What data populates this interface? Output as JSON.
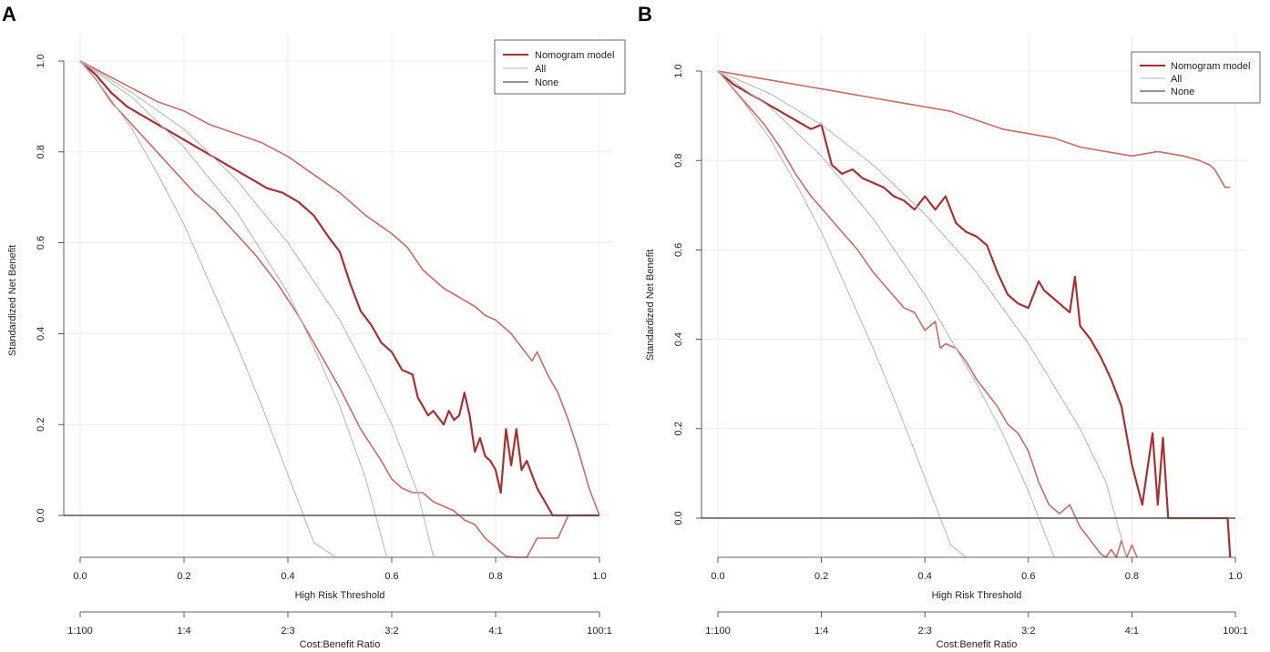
{
  "colors": {
    "model": "#a83232",
    "ci": "#cc6b63",
    "all": "#b5b5b5",
    "none": "#555555",
    "grid": "#ececec"
  },
  "chart_data": [
    {
      "panel_label": "A",
      "type": "line",
      "xlabel": "High Risk Threshold",
      "ylabel": "Standardized Net Benefit",
      "xlim": [
        0,
        1
      ],
      "ylim": [
        -0.09,
        1.02
      ],
      "xticks": [
        "0.0",
        "0.2",
        "0.4",
        "0.6",
        "0.8",
        "1.0"
      ],
      "yticks": [
        "0.0",
        "0.2",
        "0.4",
        "0.6",
        "0.8",
        "1.0"
      ],
      "cost_benefit_label": "Cost:Benefit Ratio",
      "cost_benefit_ticks": [
        "1:100",
        "1:4",
        "2:3",
        "3:2",
        "4:1",
        "100:1"
      ],
      "legend": [
        "Nomogram model",
        "All",
        "None"
      ],
      "series": [
        {
          "name": "Nomogram model",
          "role": "model",
          "x": [
            0,
            0.03,
            0.06,
            0.09,
            0.12,
            0.15,
            0.18,
            0.21,
            0.24,
            0.27,
            0.3,
            0.33,
            0.36,
            0.39,
            0.42,
            0.45,
            0.48,
            0.5,
            0.52,
            0.54,
            0.56,
            0.58,
            0.6,
            0.62,
            0.64,
            0.65,
            0.66,
            0.67,
            0.68,
            0.7,
            0.71,
            0.72,
            0.73,
            0.74,
            0.75,
            0.76,
            0.77,
            0.78,
            0.79,
            0.8,
            0.81,
            0.82,
            0.83,
            0.84,
            0.85,
            0.86,
            0.87,
            0.88,
            0.89,
            0.9,
            0.91,
            0.92,
            0.93,
            0.94,
            0.95,
            0.96,
            0.98,
            1.0
          ],
          "y": [
            1.0,
            0.97,
            0.93,
            0.9,
            0.88,
            0.86,
            0.84,
            0.82,
            0.8,
            0.78,
            0.76,
            0.74,
            0.72,
            0.71,
            0.69,
            0.66,
            0.61,
            0.58,
            0.51,
            0.45,
            0.42,
            0.38,
            0.36,
            0.32,
            0.31,
            0.26,
            0.24,
            0.22,
            0.23,
            0.2,
            0.23,
            0.21,
            0.22,
            0.27,
            0.22,
            0.14,
            0.17,
            0.13,
            0.12,
            0.1,
            0.05,
            0.19,
            0.11,
            0.19,
            0.1,
            0.12,
            0.09,
            0.06,
            0.04,
            0.02,
            0.0,
            0.0,
            0.0,
            0.0,
            0.0,
            0.0,
            0.0,
            0.0
          ]
        },
        {
          "name": "Upper CI",
          "role": "ci",
          "x": [
            0,
            0.05,
            0.1,
            0.15,
            0.2,
            0.25,
            0.3,
            0.35,
            0.4,
            0.45,
            0.5,
            0.55,
            0.6,
            0.63,
            0.66,
            0.7,
            0.73,
            0.76,
            0.78,
            0.8,
            0.83,
            0.85,
            0.87,
            0.88,
            0.9,
            0.92,
            0.94,
            0.96,
            0.98,
            1.0
          ],
          "y": [
            1.0,
            0.97,
            0.94,
            0.91,
            0.89,
            0.86,
            0.84,
            0.82,
            0.79,
            0.75,
            0.71,
            0.66,
            0.62,
            0.59,
            0.54,
            0.5,
            0.48,
            0.46,
            0.44,
            0.43,
            0.4,
            0.37,
            0.34,
            0.36,
            0.31,
            0.27,
            0.21,
            0.14,
            0.06,
            0.0
          ]
        },
        {
          "name": "Lower CI",
          "role": "ci",
          "x": [
            0,
            0.03,
            0.06,
            0.1,
            0.14,
            0.18,
            0.22,
            0.26,
            0.3,
            0.34,
            0.38,
            0.42,
            0.46,
            0.5,
            0.54,
            0.58,
            0.6,
            0.62,
            0.64,
            0.66,
            0.68,
            0.7,
            0.72,
            0.74,
            0.76,
            0.78,
            0.8,
            0.82,
            0.84,
            0.86,
            0.88,
            0.9,
            0.92,
            0.94
          ],
          "y": [
            1.0,
            0.96,
            0.91,
            0.86,
            0.81,
            0.76,
            0.71,
            0.67,
            0.62,
            0.57,
            0.51,
            0.44,
            0.36,
            0.28,
            0.19,
            0.12,
            0.08,
            0.06,
            0.05,
            0.05,
            0.03,
            0.02,
            0.01,
            -0.01,
            -0.02,
            -0.05,
            -0.07,
            -0.09,
            -0.1,
            -0.1,
            -0.05,
            -0.05,
            -0.05,
            0.0
          ]
        },
        {
          "name": "All",
          "role": "all",
          "curves": [
            {
              "x": [
                0,
                0.05,
                0.1,
                0.15,
                0.2,
                0.25,
                0.3,
                0.35,
                0.4,
                0.45,
                0.49
              ],
              "y": [
                1.0,
                0.93,
                0.85,
                0.75,
                0.64,
                0.51,
                0.38,
                0.24,
                0.09,
                -0.06,
                -0.09
              ]
            },
            {
              "x": [
                0,
                0.1,
                0.2,
                0.3,
                0.4,
                0.45,
                0.5,
                0.55,
                0.59
              ],
              "y": [
                1.0,
                0.92,
                0.81,
                0.67,
                0.49,
                0.37,
                0.24,
                0.08,
                -0.09
              ]
            },
            {
              "x": [
                0,
                0.1,
                0.2,
                0.3,
                0.4,
                0.5,
                0.55,
                0.6,
                0.65,
                0.68
              ],
              "y": [
                1.0,
                0.93,
                0.85,
                0.74,
                0.6,
                0.43,
                0.32,
                0.2,
                0.05,
                -0.09
              ]
            }
          ]
        },
        {
          "name": "None",
          "role": "none",
          "y": 0.0
        }
      ]
    },
    {
      "panel_label": "B",
      "type": "line",
      "xlabel": "High Risk Threshold",
      "ylabel": "Standardized Net Benefit",
      "xlim": [
        0,
        1
      ],
      "ylim": [
        -0.09,
        1.0
      ],
      "xticks": [
        "0.0",
        "0.2",
        "0.4",
        "0.6",
        "0.8",
        "1.0"
      ],
      "yticks": [
        "0.0",
        "0.2",
        "0.4",
        "0.6",
        "0.8",
        "1.0"
      ],
      "cost_benefit_label": "Cost:Benefit Ratio",
      "cost_benefit_ticks": [
        "1:100",
        "1:4",
        "2:3",
        "3:2",
        "4:1",
        "100:1"
      ],
      "legend": [
        "Nomogram model",
        "All",
        "None"
      ],
      "series": [
        {
          "name": "Nomogram model",
          "role": "model",
          "x": [
            0,
            0.03,
            0.06,
            0.09,
            0.12,
            0.15,
            0.18,
            0.2,
            0.22,
            0.24,
            0.26,
            0.28,
            0.3,
            0.32,
            0.34,
            0.36,
            0.38,
            0.4,
            0.42,
            0.44,
            0.46,
            0.48,
            0.5,
            0.52,
            0.54,
            0.56,
            0.58,
            0.6,
            0.62,
            0.63,
            0.64,
            0.66,
            0.68,
            0.69,
            0.7,
            0.72,
            0.74,
            0.76,
            0.78,
            0.8,
            0.82,
            0.84,
            0.85,
            0.86,
            0.87,
            0.88,
            0.89,
            0.9,
            0.91,
            0.92,
            0.95,
            0.98,
            0.985,
            0.99
          ],
          "y": [
            1.0,
            0.97,
            0.95,
            0.93,
            0.91,
            0.89,
            0.87,
            0.88,
            0.79,
            0.77,
            0.78,
            0.76,
            0.75,
            0.74,
            0.72,
            0.71,
            0.69,
            0.72,
            0.69,
            0.72,
            0.66,
            0.64,
            0.63,
            0.61,
            0.55,
            0.5,
            0.48,
            0.47,
            0.53,
            0.51,
            0.5,
            0.48,
            0.46,
            0.54,
            0.43,
            0.4,
            0.36,
            0.31,
            0.25,
            0.12,
            0.03,
            0.19,
            0.03,
            0.18,
            0.0,
            0.0,
            0.0,
            0.0,
            0.0,
            0.0,
            0.0,
            0.0,
            0.0,
            -0.09
          ]
        },
        {
          "name": "Upper CI",
          "role": "ci",
          "x": [
            0,
            0.05,
            0.1,
            0.15,
            0.2,
            0.25,
            0.3,
            0.35,
            0.4,
            0.45,
            0.5,
            0.55,
            0.6,
            0.65,
            0.7,
            0.75,
            0.8,
            0.85,
            0.9,
            0.93,
            0.95,
            0.96,
            0.97,
            0.98,
            0.99
          ],
          "y": [
            1.0,
            0.99,
            0.98,
            0.97,
            0.96,
            0.95,
            0.94,
            0.93,
            0.92,
            0.91,
            0.89,
            0.87,
            0.86,
            0.85,
            0.83,
            0.82,
            0.81,
            0.82,
            0.81,
            0.8,
            0.79,
            0.78,
            0.76,
            0.74,
            0.74
          ]
        },
        {
          "name": "Lower CI",
          "role": "ci",
          "x": [
            0,
            0.03,
            0.06,
            0.09,
            0.12,
            0.15,
            0.18,
            0.21,
            0.24,
            0.27,
            0.3,
            0.33,
            0.36,
            0.38,
            0.4,
            0.42,
            0.43,
            0.44,
            0.46,
            0.48,
            0.5,
            0.52,
            0.54,
            0.56,
            0.58,
            0.6,
            0.62,
            0.64,
            0.66,
            0.68,
            0.7,
            0.72,
            0.74,
            0.75,
            0.76,
            0.77,
            0.78,
            0.79,
            0.8,
            0.81
          ],
          "y": [
            1.0,
            0.96,
            0.92,
            0.88,
            0.83,
            0.77,
            0.72,
            0.68,
            0.64,
            0.6,
            0.55,
            0.51,
            0.47,
            0.46,
            0.42,
            0.44,
            0.38,
            0.39,
            0.38,
            0.35,
            0.31,
            0.28,
            0.25,
            0.21,
            0.19,
            0.15,
            0.08,
            0.03,
            0.01,
            0.03,
            -0.02,
            -0.05,
            -0.08,
            -0.09,
            -0.07,
            -0.09,
            -0.05,
            -0.09,
            -0.06,
            -0.09
          ]
        },
        {
          "name": "All",
          "role": "all",
          "curves": [
            {
              "x": [
                0,
                0.05,
                0.1,
                0.15,
                0.2,
                0.25,
                0.3,
                0.35,
                0.4,
                0.45,
                0.48
              ],
              "y": [
                1.0,
                0.93,
                0.85,
                0.75,
                0.64,
                0.51,
                0.38,
                0.24,
                0.09,
                -0.06,
                -0.09
              ]
            },
            {
              "x": [
                0,
                0.1,
                0.2,
                0.3,
                0.4,
                0.5,
                0.55,
                0.6,
                0.65
              ],
              "y": [
                1.0,
                0.92,
                0.81,
                0.67,
                0.5,
                0.3,
                0.19,
                0.06,
                -0.09
              ]
            },
            {
              "x": [
                0,
                0.1,
                0.2,
                0.3,
                0.4,
                0.5,
                0.6,
                0.7,
                0.75,
                0.79
              ],
              "y": [
                1.0,
                0.95,
                0.88,
                0.79,
                0.68,
                0.55,
                0.39,
                0.2,
                0.08,
                -0.09
              ]
            }
          ]
        },
        {
          "name": "None",
          "role": "none",
          "y": 0.0
        }
      ]
    }
  ]
}
